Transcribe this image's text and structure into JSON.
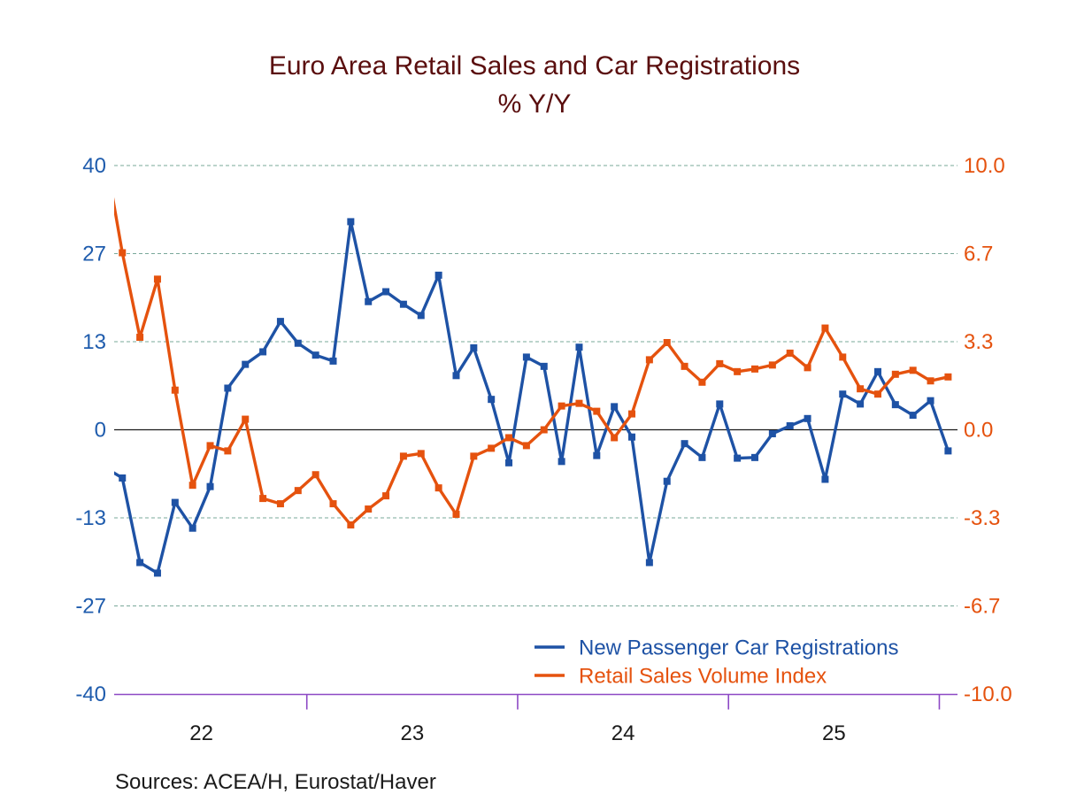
{
  "title": {
    "line1": "Euro Area Retail Sales and Car Registrations",
    "line2": "% Y/Y",
    "color": "#5a0e0e"
  },
  "left_axis": {
    "labels": [
      "40",
      "27",
      "13",
      "0",
      "-13",
      "-27",
      "-40"
    ],
    "color": "#1f5cad"
  },
  "right_axis": {
    "labels": [
      "10.0",
      "6.7",
      "3.3",
      "0.0",
      "-3.3",
      "-6.7",
      "-10.0"
    ],
    "color": "#e5520e"
  },
  "x_axis": {
    "year_labels": [
      "22",
      "23",
      "24",
      "25"
    ],
    "line_color": "#8d49c5",
    "label_color": "#1a1a1a"
  },
  "grid": {
    "color": "#79a89a",
    "zero_line_color": "#1a1a1a"
  },
  "legend": [
    {
      "label": "New Passenger Car Registrations",
      "color": "#1e52a5"
    },
    {
      "label": "Retail Sales Volume Index",
      "color": "#e5520e"
    }
  ],
  "sources": "Sources:  ACEA/H, Eurostat/Haver",
  "chart_data": {
    "type": "line",
    "title": "Euro Area Retail Sales and Car Registrations",
    "subtitle": "% Y/Y",
    "frequency": "monthly",
    "x_year_ticks": [
      "22",
      "23",
      "24",
      "25"
    ],
    "points_per_year": 12,
    "n_points": 49,
    "left_axis": {
      "tick_values": [
        40,
        27,
        13,
        0,
        -13,
        -27,
        -40
      ],
      "ylim": [
        -40,
        40
      ]
    },
    "right_axis": {
      "tick_values": [
        10.0,
        6.7,
        3.3,
        0.0,
        -3.3,
        -6.7,
        -10.0
      ],
      "ylim": [
        -10,
        10
      ]
    },
    "grid": "dashed horizontal gridlines, solid black zero line",
    "legend_position": "inside bottom-right",
    "series": [
      {
        "name": "New Passenger Car Registrations",
        "axis": "left",
        "color": "#1e52a5",
        "marker": "square",
        "values": [
          -5.7,
          -7.3,
          -20.1,
          -21.7,
          -11.0,
          -14.9,
          -8.6,
          6.3,
          9.9,
          11.8,
          16.4,
          13.1,
          11.3,
          10.4,
          31.5,
          19.4,
          20.9,
          19.0,
          17.3,
          23.4,
          8.2,
          12.4,
          4.6,
          -5.0,
          11.0,
          9.6,
          -4.8,
          12.5,
          -3.9,
          3.5,
          -1.1,
          -20.1,
          -7.8,
          -2.1,
          -4.2,
          3.9,
          -4.3,
          -4.2,
          -0.6,
          0.6,
          1.7,
          -7.5,
          5.4,
          3.9,
          8.8,
          3.8,
          2.2,
          4.4,
          -3.2
        ]
      },
      {
        "name": "Retail Sales Volume Index",
        "axis": "right",
        "color": "#e5520e",
        "marker": "square",
        "values": [
          10.5,
          6.7,
          3.5,
          5.7,
          1.5,
          -2.1,
          -0.6,
          -0.8,
          0.4,
          -2.6,
          -2.8,
          -2.3,
          -1.7,
          -2.8,
          -3.6,
          -3.0,
          -2.5,
          -1.0,
          -0.9,
          -2.2,
          -3.2,
          -1.0,
          -0.7,
          -0.3,
          -0.6,
          0.0,
          0.9,
          1.0,
          0.7,
          -0.3,
          0.6,
          2.65,
          3.3,
          2.4,
          1.8,
          2.5,
          2.2,
          2.3,
          2.45,
          2.9,
          2.35,
          3.85,
          2.75,
          1.55,
          1.35,
          2.1,
          2.25,
          1.85,
          2.0
        ]
      }
    ]
  }
}
